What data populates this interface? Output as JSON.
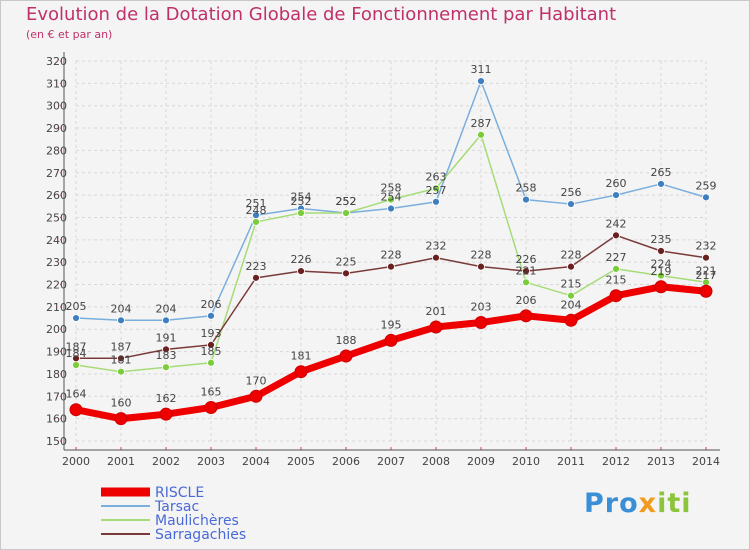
{
  "header": {
    "title": "Evolution de la Dotation Globale de Fonctionnement par Habitant",
    "subtitle": "(en € et par an)"
  },
  "logo": {
    "text": "Proxiti",
    "part1": "Pro",
    "part2": "x",
    "part3": "iti"
  },
  "chart_data": {
    "type": "line",
    "title": "Evolution de la Dotation Globale de Fonctionnement par Habitant",
    "subtitle": "(en € et par an)",
    "x": [
      "2000",
      "2001",
      "2002",
      "2003",
      "2004",
      "2005",
      "2006",
      "2007",
      "2008",
      "2009",
      "2010",
      "2011",
      "2012",
      "2013",
      "2014"
    ],
    "ylim": [
      150,
      320
    ],
    "yticks": [
      150,
      160,
      170,
      180,
      190,
      200,
      210,
      220,
      230,
      240,
      250,
      260,
      270,
      280,
      290,
      300,
      310,
      320
    ],
    "grid": true,
    "legend_position": "bottom-left",
    "series": [
      {
        "name": "RISCLE",
        "color": "#ee0000",
        "marker": "#ee0000",
        "values": [
          164,
          160,
          162,
          165,
          170,
          181,
          188,
          195,
          201,
          203,
          206,
          204,
          215,
          219,
          217
        ]
      },
      {
        "name": "Tarsac",
        "color": "#7aaedc",
        "marker": "#3f7fc0",
        "values": [
          205,
          204,
          204,
          206,
          251,
          254,
          252,
          254,
          257,
          311,
          258,
          256,
          260,
          265,
          259
        ]
      },
      {
        "name": "Maulichères",
        "color": "#a6dc78",
        "marker": "#7acc3a",
        "values": [
          184,
          181,
          183,
          185,
          248,
          252,
          252,
          258,
          263,
          287,
          221,
          215,
          227,
          224,
          221
        ]
      },
      {
        "name": "Sarragachies",
        "color": "#7a3a3a",
        "marker": "#6b2020",
        "values": [
          187,
          187,
          191,
          193,
          223,
          226,
          225,
          228,
          232,
          228,
          226,
          228,
          242,
          235,
          232
        ]
      }
    ]
  }
}
